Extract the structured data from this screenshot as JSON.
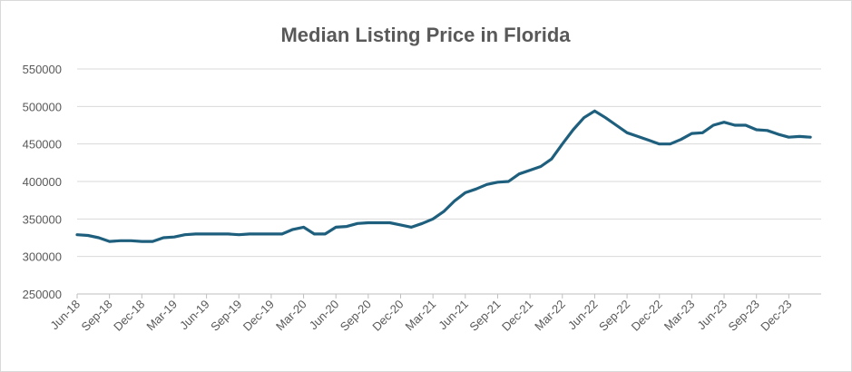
{
  "chart_data": {
    "type": "line",
    "title": "Median Listing Price in Florida",
    "categories": [
      "Jun-18",
      null,
      null,
      "Sep-18",
      null,
      null,
      "Dec-18",
      null,
      null,
      "Mar-19",
      null,
      null,
      "Jun-19",
      null,
      null,
      "Sep-19",
      null,
      null,
      "Dec-19",
      null,
      null,
      "Mar-20",
      null,
      null,
      "Jun-20",
      null,
      null,
      "Sep-20",
      null,
      null,
      "Dec-20",
      null,
      null,
      "Mar-21",
      null,
      null,
      "Jun-21",
      null,
      null,
      "Sep-21",
      null,
      null,
      "Dec-21",
      null,
      null,
      "Mar-22",
      null,
      null,
      "Jun-22",
      null,
      null,
      "Sep-22",
      null,
      null,
      "Dec-22",
      null,
      null,
      "Mar-23",
      null,
      null,
      "Jun-23",
      null,
      null,
      "Sep-23",
      null,
      null,
      "Dec-23",
      null,
      null
    ],
    "series": [
      {
        "name": "Median Listing Price",
        "color": "#1f5f7e",
        "values": [
          329000,
          328000,
          325000,
          320000,
          321000,
          321000,
          320000,
          320000,
          325000,
          326000,
          329000,
          330000,
          330000,
          330000,
          330000,
          329000,
          330000,
          330000,
          330000,
          330000,
          336000,
          339000,
          330000,
          330000,
          339000,
          340000,
          344000,
          345000,
          345000,
          345000,
          342000,
          339000,
          344000,
          350000,
          360000,
          374000,
          385000,
          390000,
          396000,
          399000,
          400000,
          410000,
          415000,
          420000,
          430000,
          450000,
          469000,
          485000,
          494000,
          485000,
          475000,
          465000,
          460000,
          455000,
          450000,
          450000,
          456000,
          464000,
          465000,
          475000,
          479000,
          475000,
          475000,
          469000,
          468000,
          463000,
          459000,
          460000,
          459000
        ]
      }
    ],
    "ylim": [
      250000,
      550000
    ],
    "yticks": [
      250000,
      300000,
      350000,
      400000,
      450000,
      500000,
      550000
    ],
    "grid": true
  }
}
